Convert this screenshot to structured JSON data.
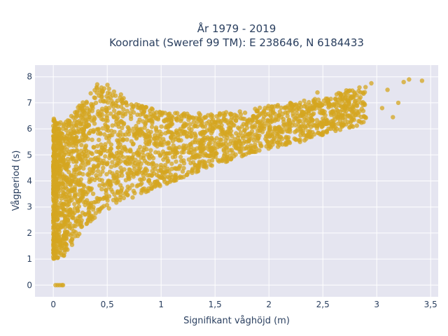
{
  "chart_data": {
    "type": "scatter",
    "title_lines": [
      "År 1979 - 2019",
      "Koordinat (Sweref 99 TM): E 238646, N 6184433"
    ],
    "xlabel": "Signifikant våghöjd (m)",
    "ylabel": "Vågperiod (s)",
    "xlim": [
      -0.17,
      3.57
    ],
    "ylim": [
      -0.45,
      8.45
    ],
    "x_ticks": [
      0,
      0.5,
      1,
      1.5,
      2,
      2.5,
      3,
      3.5
    ],
    "x_tick_labels": [
      "0",
      "0,5",
      "1",
      "1,5",
      "2",
      "2,5",
      "3",
      "3,5"
    ],
    "y_ticks": [
      0,
      1,
      2,
      3,
      4,
      5,
      6,
      7,
      8
    ],
    "y_tick_labels": [
      "0",
      "1",
      "2",
      "3",
      "4",
      "5",
      "6",
      "7",
      "8"
    ],
    "grid": true,
    "marker_color": "#d4a520",
    "plot_background": "#e5e5f0",
    "points_upper_envelope": [
      [
        0.0,
        6.4
      ],
      [
        0.1,
        6.2
      ],
      [
        0.2,
        6.7
      ],
      [
        0.3,
        7.2
      ],
      [
        0.4,
        7.8
      ],
      [
        0.5,
        7.7
      ],
      [
        0.6,
        7.4
      ],
      [
        0.8,
        6.9
      ],
      [
        1.0,
        6.7
      ],
      [
        1.2,
        6.6
      ],
      [
        1.5,
        6.6
      ],
      [
        1.8,
        6.7
      ],
      [
        2.0,
        6.9
      ],
      [
        2.2,
        7.0
      ],
      [
        2.5,
        7.2
      ],
      [
        2.8,
        7.6
      ],
      [
        3.0,
        7.8
      ],
      [
        3.2,
        8.0
      ],
      [
        3.4,
        8.0
      ]
    ],
    "points_lower_envelope": [
      [
        0.0,
        1.0
      ],
      [
        0.1,
        1.1
      ],
      [
        0.2,
        1.7
      ],
      [
        0.3,
        2.3
      ],
      [
        0.5,
        2.9
      ],
      [
        0.7,
        3.3
      ],
      [
        1.0,
        3.8
      ],
      [
        1.3,
        4.3
      ],
      [
        1.5,
        4.6
      ],
      [
        1.8,
        5.0
      ],
      [
        2.0,
        5.2
      ],
      [
        2.3,
        5.5
      ],
      [
        2.6,
        5.9
      ],
      [
        2.9,
        6.2
      ]
    ],
    "points_isolated": [
      [
        0.02,
        0.0
      ],
      [
        0.04,
        0.0
      ],
      [
        0.06,
        0.0
      ],
      [
        0.08,
        0.0
      ],
      [
        0.09,
        0.0
      ],
      [
        2.45,
        7.4
      ],
      [
        2.55,
        7.1
      ],
      [
        2.7,
        6.9
      ],
      [
        2.85,
        7.4
      ],
      [
        2.95,
        7.75
      ],
      [
        3.05,
        6.8
      ],
      [
        3.1,
        7.5
      ],
      [
        3.15,
        6.45
      ],
      [
        3.2,
        7.0
      ],
      [
        3.25,
        7.8
      ],
      [
        3.3,
        7.9
      ],
      [
        3.42,
        7.85
      ]
    ]
  }
}
